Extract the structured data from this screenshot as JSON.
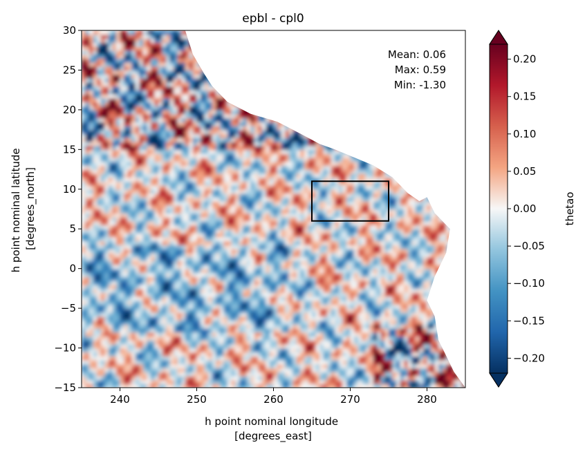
{
  "chart_data": {
    "type": "heatmap",
    "title": "epbl - cpl0",
    "xlabel_line1": "h point nominal longitude",
    "xlabel_line2": "[degrees_east]",
    "ylabel_line1": "h point nominal latitude",
    "ylabel_line2": "[degrees_north]",
    "xlim": [
      235,
      285
    ],
    "ylim": [
      -15,
      30
    ],
    "x_ticks": [
      240,
      250,
      260,
      270,
      280
    ],
    "y_ticks": [
      -15,
      -10,
      -5,
      0,
      5,
      10,
      15,
      20,
      25,
      30
    ],
    "x_tick_labels": [
      "240",
      "250",
      "260",
      "270",
      "280"
    ],
    "y_tick_labels": [
      "−15",
      "−10",
      "−5",
      "0",
      "5",
      "10",
      "15",
      "20",
      "25",
      "30"
    ],
    "stats": {
      "mean": "Mean: 0.06",
      "max": "Max: 0.59",
      "min": "Min: -1.30"
    },
    "highlight_box": {
      "x": [
        265,
        275
      ],
      "y": [
        6,
        11
      ]
    },
    "colorbar": {
      "label": "thetao",
      "colormap": "RdBu_r",
      "vmin": -0.22,
      "vmax": 0.22,
      "extend": "both",
      "ticks": [
        -0.2,
        -0.15,
        -0.1,
        -0.05,
        0.0,
        0.05,
        0.1,
        0.15,
        0.2
      ],
      "tick_labels": [
        "−0.20",
        "−0.15",
        "−0.10",
        "−0.05",
        "0.00",
        "0.05",
        "0.10",
        "0.15",
        "0.20"
      ]
    },
    "land_mask_color": "#ffffff",
    "field_description": "thetao difference anomaly field over the eastern tropical Pacific; land (upper right) shown white"
  }
}
